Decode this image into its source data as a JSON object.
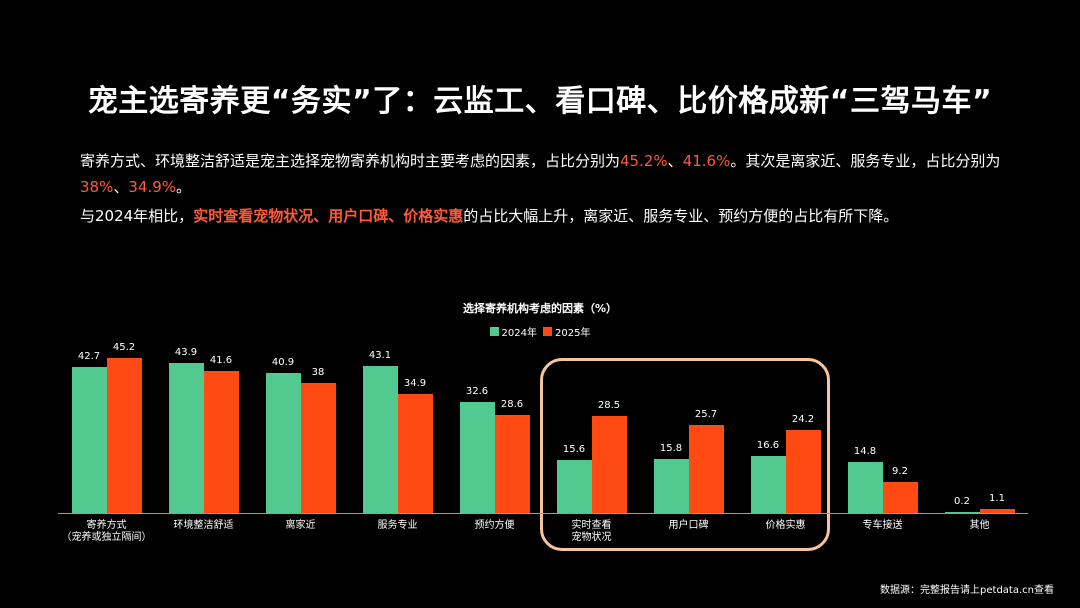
{
  "header": {
    "title": "宠主选寄养更“务实”了：云监工、看口碑、比价格成新“三驾马车”"
  },
  "description": {
    "p1_a": "寄养方式、环境整洁舒适是宠主选择宠物寄养机构时主要考虑的因素，占比分别为",
    "p1_h1": "45.2%",
    "p1_sep1": "、",
    "p1_h2": "41.6%",
    "p1_b": "。其次是离家近、服务专业，占比分别为",
    "p1_h3": "38%",
    "p1_sep2": "、",
    "p1_h4": "34.9%",
    "p1_c": "。",
    "p2_a": "与2024年相比，",
    "p2_h": "实时查看宠物状况、用户口碑、价格实惠",
    "p2_b": "的占比大幅上升，离家近、服务专业、预约方便的占比有所下降。"
  },
  "colors": {
    "series_2024": "#52c98f",
    "series_2025": "#ff4a14",
    "highlight_text": "#ff5a36",
    "highlight_box": "#f7c49b",
    "background": "#000000"
  },
  "chart_data": {
    "type": "bar",
    "title": "选择寄养机构考虑的因素（%）",
    "xlabel": "",
    "ylabel": "",
    "ylim": [
      0,
      50
    ],
    "grid": false,
    "legend_position": "top",
    "categories": [
      "寄养方式\n(宠养或独立隔间)",
      "环境整洁舒适",
      "离家近",
      "服务专业",
      "预约方便",
      "实时查看\n宠物状况",
      "用户口碑",
      "价格实惠",
      "专车接送",
      "其他"
    ],
    "series": [
      {
        "name": "2024年",
        "values": [
          42.7,
          43.9,
          40.9,
          43.1,
          32.6,
          15.6,
          15.8,
          16.6,
          14.8,
          0.2
        ]
      },
      {
        "name": "2025年",
        "values": [
          45.2,
          41.6,
          38,
          34.9,
          28.6,
          28.5,
          25.7,
          24.2,
          9.2,
          1.1
        ]
      }
    ],
    "value_labels": {
      "2024": [
        "42.7",
        "43.9",
        "40.9",
        "43.1",
        "32.6",
        "15.6",
        "15.8",
        "16.6",
        "14.8",
        "0.2"
      ],
      "2025": [
        "45.2",
        "41.6",
        "38",
        "34.9",
        "28.6",
        "28.5",
        "25.7",
        "24.2",
        "9.2",
        "1.1"
      ]
    },
    "annotations": [
      "highlight box around 实时查看宠物状况, 用户口碑, 价格实惠"
    ]
  },
  "chart": {
    "title": "选择寄养机构考虑的因素（%）",
    "legend": [
      "2024年",
      "2025年"
    ],
    "categories": [
      {
        "line1": "寄养方式",
        "line2": "（宠养或独立隔间）"
      },
      {
        "line1": "环境整洁舒适",
        "line2": ""
      },
      {
        "line1": "离家近",
        "line2": ""
      },
      {
        "line1": "服务专业",
        "line2": ""
      },
      {
        "line1": "预约方便",
        "line2": ""
      },
      {
        "line1": "实时查看",
        "line2": "宠物状况"
      },
      {
        "line1": "用户口碑",
        "line2": ""
      },
      {
        "line1": "价格实惠",
        "line2": ""
      },
      {
        "line1": "专车接送",
        "line2": ""
      },
      {
        "line1": "其他",
        "line2": ""
      }
    ],
    "v2024": [
      "42.7",
      "43.9",
      "40.9",
      "43.1",
      "32.6",
      "15.6",
      "15.8",
      "16.6",
      "14.8",
      "0.2"
    ],
    "v2025": [
      "45.2",
      "41.6",
      "38",
      "34.9",
      "28.6",
      "28.5",
      "25.7",
      "24.2",
      "9.2",
      "1.1"
    ]
  },
  "footer": {
    "source": "数据源：完整报告请上petdata.cn查看"
  }
}
